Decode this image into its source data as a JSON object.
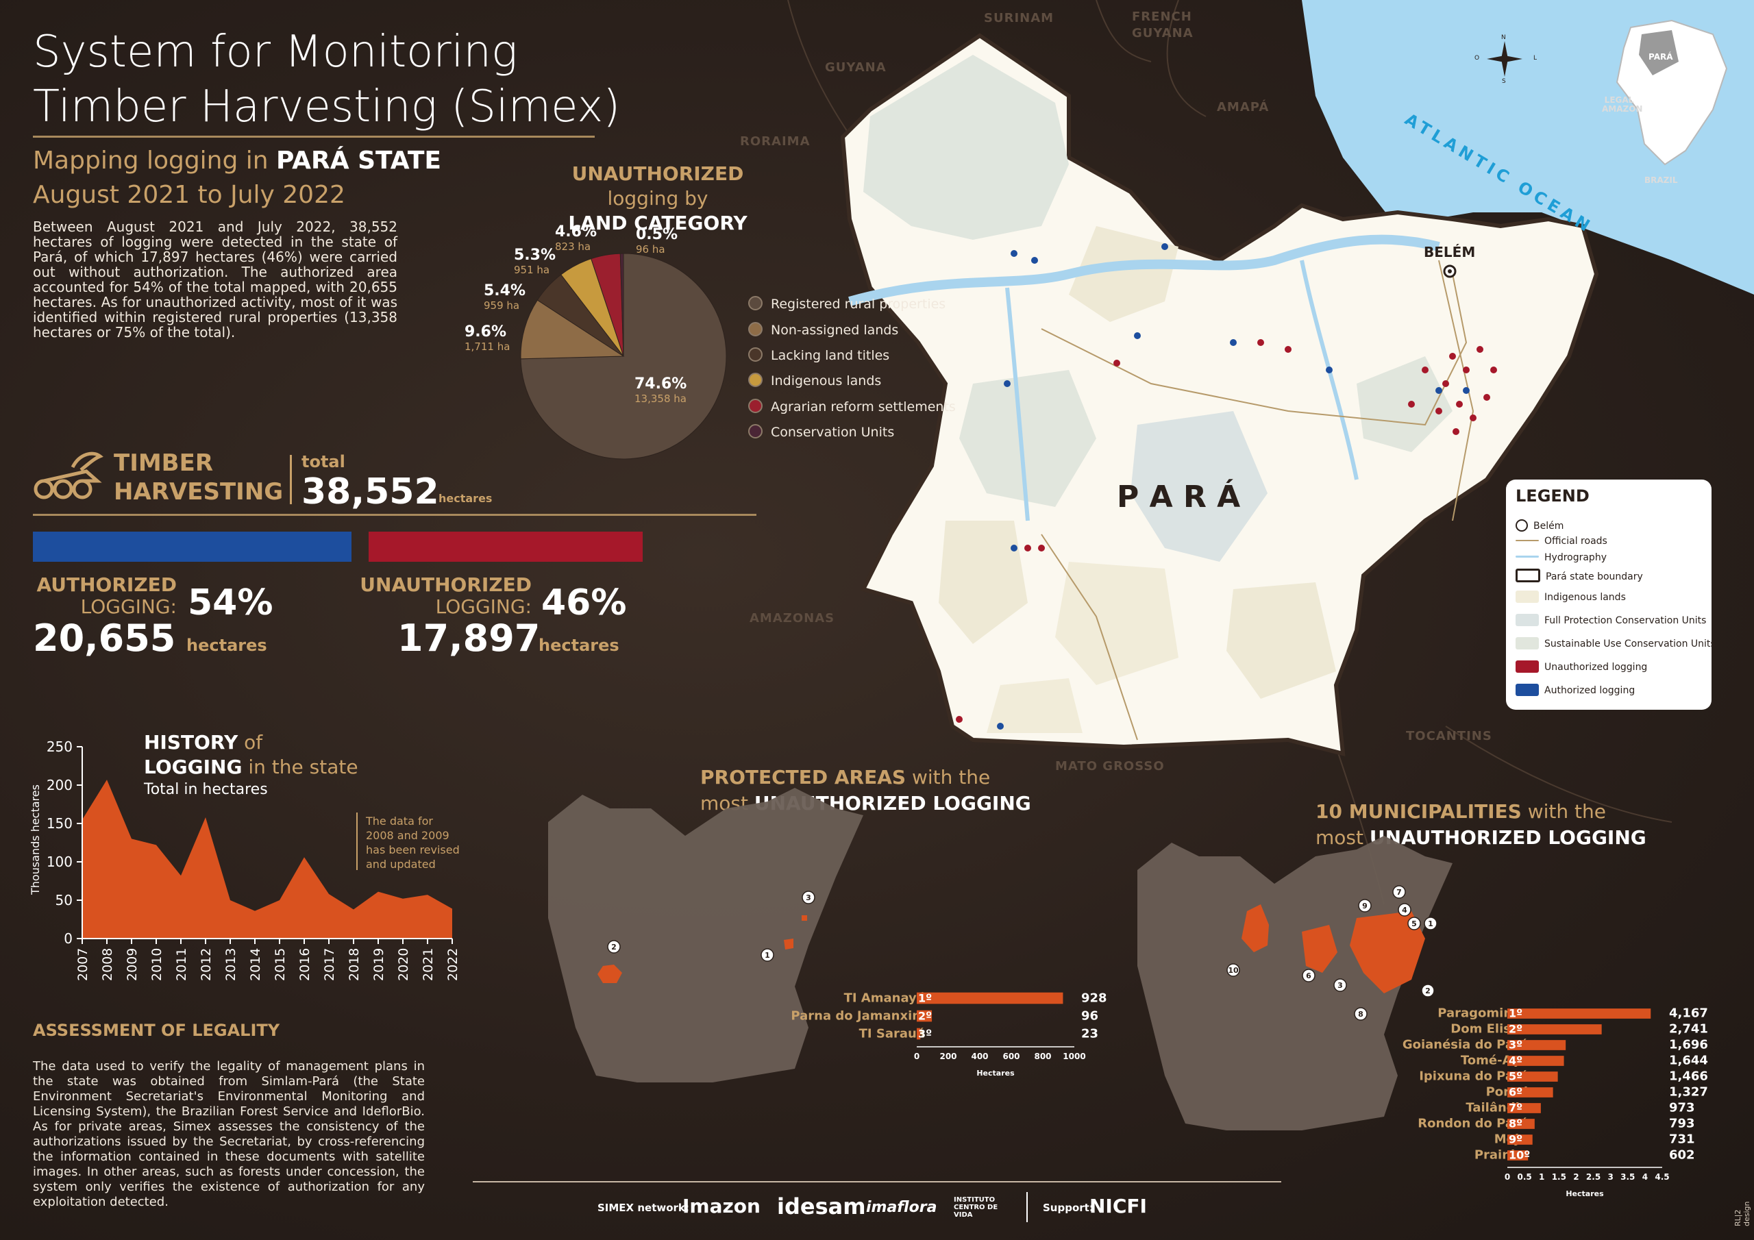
{
  "title": "System for Monitoring\nTimber Harvesting (Simex)",
  "subtitle": {
    "line1_prefix": "Mapping logging in ",
    "line1_bold": "PARÁ STATE",
    "line2": "August 2021 to July 2022"
  },
  "intro": "Between August 2021 and July 2022, 38,552 hectares of logging were detected in the state of Pará, of which 17,897 hectares (46%) were carried out without authorization. The authorized area accounted for 54% of the total mapped, with 20,655 hectares. As for unauthorized activity, most of it was identified within registered rural properties (13,358 hectares or 75% of the total).",
  "land_category": {
    "title_bold": "UNAUTHORIZED",
    "title_rest": " logging by",
    "title_line2": "LAND CATEGORY",
    "slices": [
      {
        "pct": "74.6%",
        "value": 74.6,
        "ha": "13,358 ha",
        "name": "Registered rural properties",
        "color": "#5b4a3e"
      },
      {
        "pct": "9.6%",
        "value": 9.6,
        "ha": "1,711 ha",
        "name": "Non-assigned lands",
        "color": "#8e6c47"
      },
      {
        "pct": "5.4%",
        "value": 5.4,
        "ha": "959 ha",
        "name": "Lacking land titles",
        "color": "#4a3629"
      },
      {
        "pct": "5.3%",
        "value": 5.3,
        "ha": "951 ha",
        "name": "Indigenous lands",
        "color": "#c79a3e"
      },
      {
        "pct": "4.6%",
        "value": 4.6,
        "ha": "823 ha",
        "name": "Agrarian reform settlements",
        "color": "#9b1f2e"
      },
      {
        "pct": "0.5%",
        "value": 0.5,
        "ha": "96 ha",
        "name": "Conservation Units",
        "color": "#4a2535"
      }
    ]
  },
  "timber": {
    "label_line1": "TIMBER",
    "label_line2": "HARVESTING",
    "total_label": "total",
    "total_value": "38,552",
    "total_unit": "hectares"
  },
  "authorized": {
    "label1": "AUTHORIZED",
    "label2": "LOGGING:",
    "pct": "54%",
    "value": "20,655",
    "unit": "hectares",
    "share": 0.54,
    "color": "#1d4e9e"
  },
  "unauthorized": {
    "label1": "UNAUTHORIZED",
    "label2": "LOGGING:",
    "pct": "46%",
    "value": "17,897",
    "unit": "hectares",
    "share": 0.46,
    "color": "#a6182a"
  },
  "history": {
    "title_bold": "HISTORY",
    "title_rest": " of",
    "title_line2_bold": "LOGGING",
    "title_line2_rest": " in the state",
    "subtitle": "Total in hectares",
    "note": "The data for\n2008 and 2009\nhas been revised\nand updated"
  },
  "chart_data": {
    "type": "area",
    "ylabel": "Thousands hectares",
    "ylim": [
      0,
      250
    ],
    "yticks": [
      0,
      50,
      100,
      150,
      200,
      250
    ],
    "x": [
      "2007",
      "2008",
      "2009",
      "2010",
      "2011",
      "2012",
      "2013",
      "2014",
      "2015",
      "2016",
      "2017",
      "2018",
      "2019",
      "2020",
      "2021",
      "2022"
    ],
    "values": [
      155,
      207,
      130,
      122,
      82,
      158,
      50,
      36,
      50,
      106,
      58,
      38,
      61,
      52,
      57,
      39
    ],
    "color": "#d9521f"
  },
  "assessment": {
    "title": "ASSESSMENT OF LEGALITY",
    "text": "The data used to verify the legality of management plans in the state was obtained from Simlam-Pará (the State Environment Secretariat's Environmental Monitoring and Licensing System), the Brazilian Forest Service and IdeflorBio. As for private areas, Simex assesses the consistency of the authorizations issued by the Secretariat, by cross-referencing the information contained in these documents with satellite images. In other areas, such as forests under concession, the system only verifies the existence of authorization for any exploitation detected."
  },
  "protected_areas": {
    "title_bold": "PROTECTED AREAS",
    "title_rest": " with the",
    "title_line2": "most ",
    "title_line2_bold": "UNAUTHORIZED LOGGING",
    "xlabel": "Hectares",
    "xticks": [
      "0",
      "200",
      "400",
      "600",
      "800",
      "1000"
    ],
    "xmax": 1000,
    "items": [
      {
        "rank": "1º",
        "name": "TI Amanayé",
        "value": 928,
        "label": "928"
      },
      {
        "rank": "2º",
        "name": "Parna do Jamanxim",
        "value": 96,
        "label": "96"
      },
      {
        "rank": "3º",
        "name": "TI Sarauá",
        "value": 23,
        "label": "23"
      }
    ],
    "markers": [
      "1",
      "2",
      "3"
    ]
  },
  "municipalities": {
    "title_bold": "10 MUNICIPALITIES",
    "title_rest": " with the",
    "title_line2": "most ",
    "title_line2_bold": "UNAUTHORIZED LOGGING",
    "xlabel": "Hectares",
    "xticks": [
      "0",
      "0.5",
      "1",
      "1.5",
      "2",
      "2.5",
      "3",
      "3.5",
      "4",
      "4.5"
    ],
    "xmax": 4.5,
    "items": [
      {
        "rank": "1º",
        "name": "Paragominas",
        "value": 4.167,
        "label": "4,167"
      },
      {
        "rank": "2º",
        "name": "Dom Eliseu",
        "value": 2.741,
        "label": "2,741"
      },
      {
        "rank": "3º",
        "name": "Goianésia do Pará",
        "value": 1.696,
        "label": "1,696"
      },
      {
        "rank": "4º",
        "name": "Tomé-Açu",
        "value": 1.644,
        "label": "1,644"
      },
      {
        "rank": "5º",
        "name": "Ipixuna do Pará",
        "value": 1.466,
        "label": "1,466"
      },
      {
        "rank": "6º",
        "name": "Portel",
        "value": 1.327,
        "label": "1,327"
      },
      {
        "rank": "7º",
        "name": "Tailândia",
        "value": 0.973,
        "label": "973"
      },
      {
        "rank": "8º",
        "name": "Rondon do Pará",
        "value": 0.793,
        "label": "793"
      },
      {
        "rank": "9º",
        "name": "Moju",
        "value": 0.731,
        "label": "731"
      },
      {
        "rank": "10º",
        "name": "Prainha",
        "value": 0.602,
        "label": "602"
      }
    ],
    "markers": [
      "1",
      "2",
      "3",
      "4",
      "5",
      "6",
      "7",
      "8",
      "9",
      "10"
    ]
  },
  "map": {
    "state_label": "P A R Á",
    "city": "BELÉM",
    "ocean": "ATLANTIC OCEAN",
    "neighbors": [
      "SURINAM",
      "FRENCH",
      "GUYANA",
      "GUYANA",
      "RORAIMA",
      "AMAPÁ",
      "AMAZONAS",
      "MATO GROSSO",
      "TOCANTINS"
    ],
    "inset": {
      "state": "PARÁ",
      "region_line1": "LEGAL",
      "region_line2": "AMAZON",
      "country": "BRAZIL"
    },
    "compass": {
      "n": "N",
      "s": "S",
      "e": "L",
      "w": "O"
    }
  },
  "map_legend": {
    "title": "LEGEND",
    "items": [
      {
        "label": "Belém",
        "kind": "city"
      },
      {
        "label": "Official roads",
        "kind": "line",
        "color": "#b69a6a"
      },
      {
        "label": "Hydrography",
        "kind": "line",
        "color": "#a9d4ee"
      },
      {
        "label": "Pará state boundary",
        "kind": "box",
        "color": "#ffffff"
      },
      {
        "label": "Indigenous lands",
        "kind": "fill",
        "color": "#f1ecd9"
      },
      {
        "label": "Full Protection Conservation Units",
        "kind": "fill",
        "color": "#dbe3e3"
      },
      {
        "label": "Sustainable Use Conservation Units",
        "kind": "fill",
        "color": "#e1e6dd"
      },
      {
        "label": "Unauthorized logging",
        "kind": "fill",
        "color": "#a6182a"
      },
      {
        "label": "Authorized logging",
        "kind": "fill",
        "color": "#1d4e9e"
      }
    ]
  },
  "footer": {
    "network_label": "SIMEX network:",
    "logos": [
      "Imazon",
      "idesam",
      "imaflora",
      "INSTITUTO CENTRO DE VIDA"
    ],
    "support_label": "Support:",
    "support_logo": "NICFI"
  },
  "credit": "RL|2 design"
}
